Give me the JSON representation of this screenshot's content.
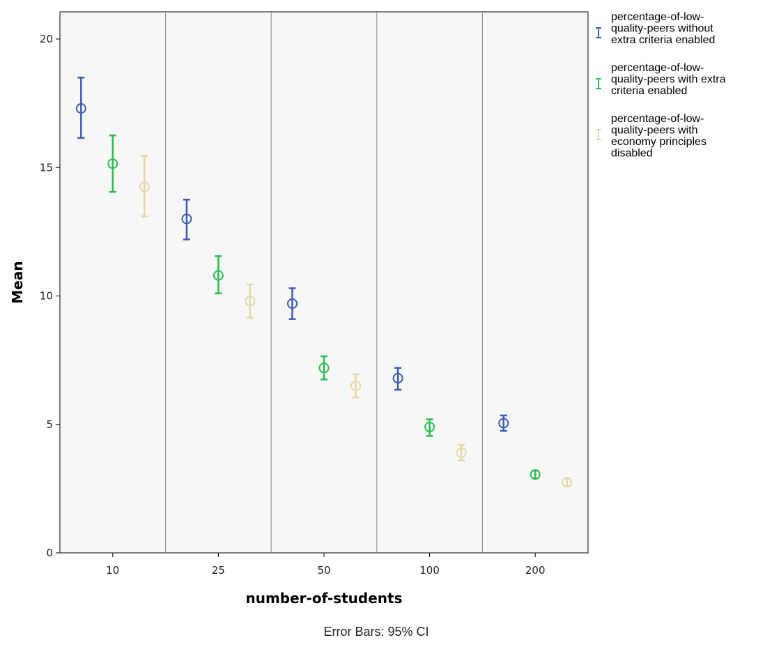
{
  "chart_data": {
    "type": "error-bar",
    "xlabel": "number-of-students",
    "ylabel": "Mean",
    "footnote": "Error Bars: 95% CI",
    "ylim": [
      0,
      21
    ],
    "yticks": [
      0,
      5,
      10,
      15,
      20
    ],
    "categories": [
      "10",
      "25",
      "50",
      "100",
      "200"
    ],
    "legend_position": "right",
    "grid": false,
    "series": [
      {
        "name": "percentage-of-low-quality-peers without extra criteria enabled",
        "legend_lines": [
          "percentage-of-low-",
          "quality-peers without",
          "extra criteria enabled"
        ],
        "color": "#3c5bb4",
        "means": [
          17.3,
          13.0,
          9.7,
          6.8,
          5.05
        ],
        "ci_low": [
          16.15,
          12.2,
          9.1,
          6.35,
          4.75
        ],
        "ci_high": [
          18.5,
          13.75,
          10.3,
          7.2,
          5.35
        ]
      },
      {
        "name": "percentage-of-low-quality-peers with extra criteria enabled",
        "legend_lines": [
          "percentage-of-low-",
          "quality-peers with extra",
          "criteria enabled"
        ],
        "color": "#2bbd4e",
        "means": [
          15.15,
          10.8,
          7.2,
          4.9,
          3.05
        ],
        "ci_low": [
          14.05,
          10.1,
          6.75,
          4.55,
          2.9
        ],
        "ci_high": [
          16.25,
          11.55,
          7.65,
          5.2,
          3.2
        ]
      },
      {
        "name": "percentage-of-low-quality-peers with economy principles disabled",
        "legend_lines": [
          "percentage-of-low-",
          "quality-peers with",
          "economy principles",
          "disabled"
        ],
        "color": "#e3d8a4",
        "means": [
          14.25,
          9.8,
          6.5,
          3.9,
          2.75
        ],
        "ci_low": [
          13.1,
          9.15,
          6.05,
          3.6,
          2.6
        ],
        "ci_high": [
          15.45,
          10.45,
          6.95,
          4.2,
          2.9
        ]
      }
    ]
  }
}
